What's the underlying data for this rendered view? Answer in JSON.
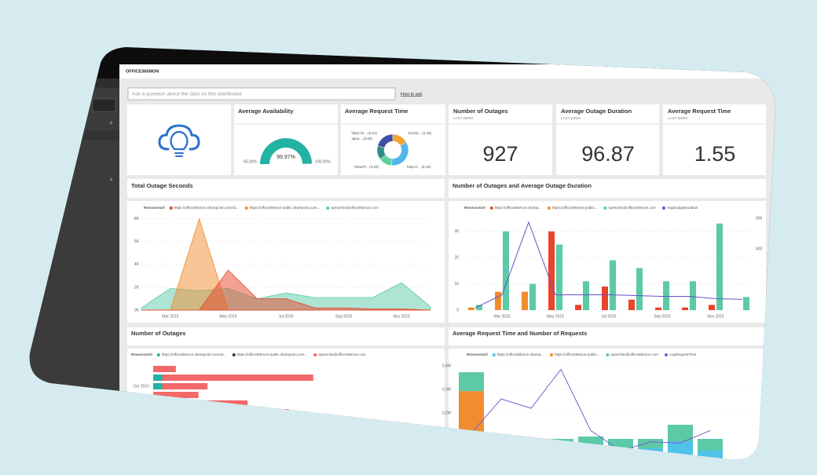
{
  "header": {
    "title": "OFFICE365MON"
  },
  "search": {
    "placeholder": "Ask a question about the data on this dashboard",
    "link": "How to ask"
  },
  "gauge": {
    "title": "Average Availability",
    "min": {
      "value": 95,
      "label": "95.00%"
    },
    "value": {
      "value": 99.97,
      "label": "99.97%"
    },
    "max": {
      "value": 100,
      "label": "100.00%"
    },
    "color": "#22b3a4"
  },
  "donut": {
    "title": "Average Request Time",
    "type": "pie",
    "labels": [
      "Excha... (4.39)",
      "https://... (9.19)",
      "ShareP... (3.69)",
      "spea... (3.69)",
      "https://s... (5.51)"
    ],
    "values": [
      4.39,
      9.19,
      3.69,
      3.69,
      5.51
    ],
    "colors": [
      "#f2a134",
      "#4fb8e8",
      "#5fcf9f",
      "#2e8f86",
      "#3c4fa0"
    ]
  },
  "kpis": [
    {
      "title": "Number of Outages",
      "subtitle": "LAST WEEK",
      "value": "927"
    },
    {
      "title": "Average Outage Duration",
      "subtitle": "LAST WEEK",
      "value": "96.87"
    },
    {
      "title": "Average Request Time",
      "subtitle": "LAST WEEK",
      "value": "1.55"
    }
  ],
  "charts": [
    {
      "title": "Total Outage Seconds",
      "type": "area",
      "legend_title": "ResourceUrl",
      "categories": [
        null,
        "Mar 2015",
        null,
        "May 2015",
        null,
        "Jul 2015",
        null,
        "Sep 2015",
        null,
        "Nov 2015",
        null
      ],
      "series": [
        {
          "name": "https://office365mon.sharepoint.com/sit...",
          "color": "#e8452c",
          "values": [
            0,
            0,
            0,
            3500,
            1000,
            1000,
            200,
            200,
            100,
            100,
            0
          ]
        },
        {
          "name": "https://office365mon-public.sharepoint.com...",
          "color": "#f28c30",
          "values": [
            0,
            0,
            8000,
            0,
            0,
            0,
            0,
            0,
            0,
            0,
            0
          ]
        },
        {
          "name": "speechito@office365mon.com",
          "color": "#5cc9a7",
          "values": [
            200,
            1900,
            1700,
            1900,
            1000,
            1500,
            1100,
            1100,
            1100,
            2400,
            300
          ]
        }
      ],
      "ylim": [
        0,
        8600
      ],
      "yticks": [
        {
          "value": 0,
          "label": "0K"
        },
        {
          "value": 2000,
          "label": "2K"
        },
        {
          "value": 4000,
          "label": "4K"
        },
        {
          "value": 6000,
          "label": "6K"
        },
        {
          "value": 8000,
          "label": "8K"
        }
      ],
      "grid": true
    },
    {
      "title": "Number of Outages and Average Outage Duration",
      "type": "bar_line",
      "legend_title": "ResourceUrl",
      "categories": [
        null,
        "Mar 2015",
        null,
        "May 2015",
        null,
        "Jul 2015",
        null,
        "Sep 2015",
        null,
        "Nov 2015",
        null
      ],
      "series": [
        {
          "name": "https://office365mon.sharep...",
          "color": "#e8452c",
          "values": [
            0,
            0,
            0,
            30,
            2,
            9,
            4,
            1,
            1,
            2,
            0
          ]
        },
        {
          "name": "https://office365mon-public...",
          "color": "#f28c30",
          "values": [
            1,
            7,
            7,
            0,
            0,
            0,
            0,
            0,
            0,
            0,
            0
          ]
        },
        {
          "name": "speechito@office365mon.com",
          "color": "#5cc9a7",
          "values": [
            2,
            30,
            10,
            25,
            11,
            19,
            16,
            11,
            11,
            33,
            5
          ]
        },
        {
          "name": "AvgOutageDuration",
          "color": "#6a4fc7",
          "axis": "y2",
          "values": [
            15,
            100,
            574,
            100,
            100,
            100,
            95,
            90,
            90,
            75,
            70
          ]
        }
      ],
      "ylim": [
        0,
        35
      ],
      "yticks": [
        0,
        10,
        20,
        30
      ],
      "y2lim": [
        0,
        600
      ],
      "y2ticks": [
        400,
        600
      ],
      "grid": true
    },
    {
      "title": "Number of Outages",
      "type": "hbar",
      "legend_title": "ResourceUrl",
      "categories": [
        null,
        null,
        "Oct 2015",
        null,
        null,
        null,
        null,
        null
      ],
      "series": [
        {
          "name": "https://office365mon.sharepoint.com/sit...",
          "color": "#1fb3a5",
          "values": [
            0,
            1.2,
            1.2,
            0,
            2.5,
            0,
            0,
            0
          ]
        },
        {
          "name": "https://office365mon-public.sharepoint.com...",
          "color": "#3a3a3a",
          "values": [
            0,
            0,
            0,
            0,
            0,
            0,
            0,
            0
          ]
        },
        {
          "name": "speechito@office365mon.com",
          "color": "#f36868",
          "values": [
            3,
            20,
            6,
            6,
            10,
            18,
            14,
            34.6
          ]
        }
      ],
      "xlim": [
        0,
        36
      ]
    },
    {
      "title": "Average Request Time and Number of Requests",
      "type": "stacked_bar_line",
      "legend_title": "ResourceUrl",
      "categories": [
        null,
        null,
        null,
        null,
        null,
        null,
        null,
        null,
        null
      ],
      "series": [
        {
          "name": "https://office365mon.sharep...",
          "color": "#4fc3e8",
          "values": [
            0,
            0,
            0,
            0,
            40000,
            20000,
            50000,
            80000,
            40000
          ]
        },
        {
          "name": "https://office365mon-public...",
          "color": "#f28c30",
          "values": [
            293000,
            0,
            0,
            0,
            0,
            0,
            0,
            0,
            0
          ]
        },
        {
          "name": "speechito@office365mon.com",
          "color": "#5cc9a7",
          "values": [
            80000,
            80000,
            90000,
            90000,
            60000,
            70000,
            40000,
            70000,
            50000
          ]
        },
        {
          "name": "AvgRequestTime",
          "color": "#7b5fd0",
          "axis": "y2",
          "values": [
            0.52,
            1.18,
            1.0,
            1.75,
            0.57,
            0.18,
            0.35,
            0.33,
            0.57
          ]
        }
      ],
      "ylim": [
        0,
        440000
      ],
      "yticks": [
        {
          "value": 200000,
          "label": "0.2M"
        },
        {
          "value": 300000,
          "label": "0.3M"
        },
        {
          "value": 400000,
          "label": "0.4M"
        }
      ],
      "y2lim": [
        0,
        2
      ],
      "grid": true
    }
  ]
}
